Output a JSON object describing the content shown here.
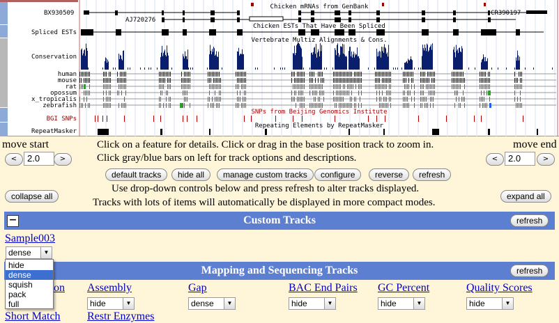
{
  "browser": {
    "track_titles": {
      "mrna": "Chicken mRNAs from GenBank",
      "spliced_est": "Chicken ESTs That Have Been Spliced",
      "multiz": "Vertebrate Multiz Alignments & Cons.",
      "snps": "SNPs from Beijing Genomics Institute",
      "repeats": "Repeating Elements by RepeatMasker"
    },
    "feature_labels": {
      "bx": "BX930509",
      "aj": "AJ720276",
      "cr": "CR390197"
    },
    "left_labels": {
      "spliced_ests": "Spliced ESTs",
      "conservation": "Conservation",
      "species": [
        "human",
        "mouse",
        "rat",
        "opossum",
        "x_tropicalis",
        "zebrafish"
      ],
      "bgi_snps": "BGI SNPs",
      "repeatmasker": "RepeatMasker"
    },
    "colors": {
      "conservation": "#0A1E6E",
      "sidebar": "#8DA9D8",
      "snp": "#B00000"
    }
  },
  "nav": {
    "move_start": "move start",
    "move_end": "move end",
    "left_arrow": "<",
    "right_arrow": ">",
    "start_value": "2.0",
    "end_value": "2.0"
  },
  "instructions": {
    "line1": "Click on a feature for details. Click or drag in the base position track to zoom in.",
    "line2": "Click gray/blue bars on left for track options and descriptions.",
    "line3": "Use drop-down controls below and press refresh to alter tracks displayed.",
    "line4": "Tracks with lots of items will automatically be displayed in more compact modes."
  },
  "buttons": {
    "default_tracks": "default tracks",
    "hide_all": "hide all",
    "manage_custom": "manage custom tracks",
    "configure": "configure",
    "reverse": "reverse",
    "refresh": "refresh",
    "collapse_all": "collapse all",
    "expand_all": "expand all"
  },
  "custom_tracks": {
    "title": "Custom Tracks",
    "minus": "−",
    "refresh": "refresh",
    "track_name": "Sample003",
    "selected": "dense",
    "options": [
      "hide",
      "dense",
      "squish",
      "pack",
      "full"
    ]
  },
  "mapping": {
    "title": "Mapping and Sequencing Tracks",
    "refresh": "refresh",
    "tracks": [
      {
        "name": "Assembly",
        "value": "hide"
      },
      {
        "name": "Gap",
        "value": "dense"
      },
      {
        "name": "BAC End Pairs",
        "value": "hide"
      },
      {
        "name": "GC Percent",
        "value": "hide"
      },
      {
        "name": "Quality Scores",
        "value": "hide"
      }
    ],
    "partial_left": "on",
    "row2": [
      "Short Match",
      "Restr Enzymes"
    ]
  }
}
